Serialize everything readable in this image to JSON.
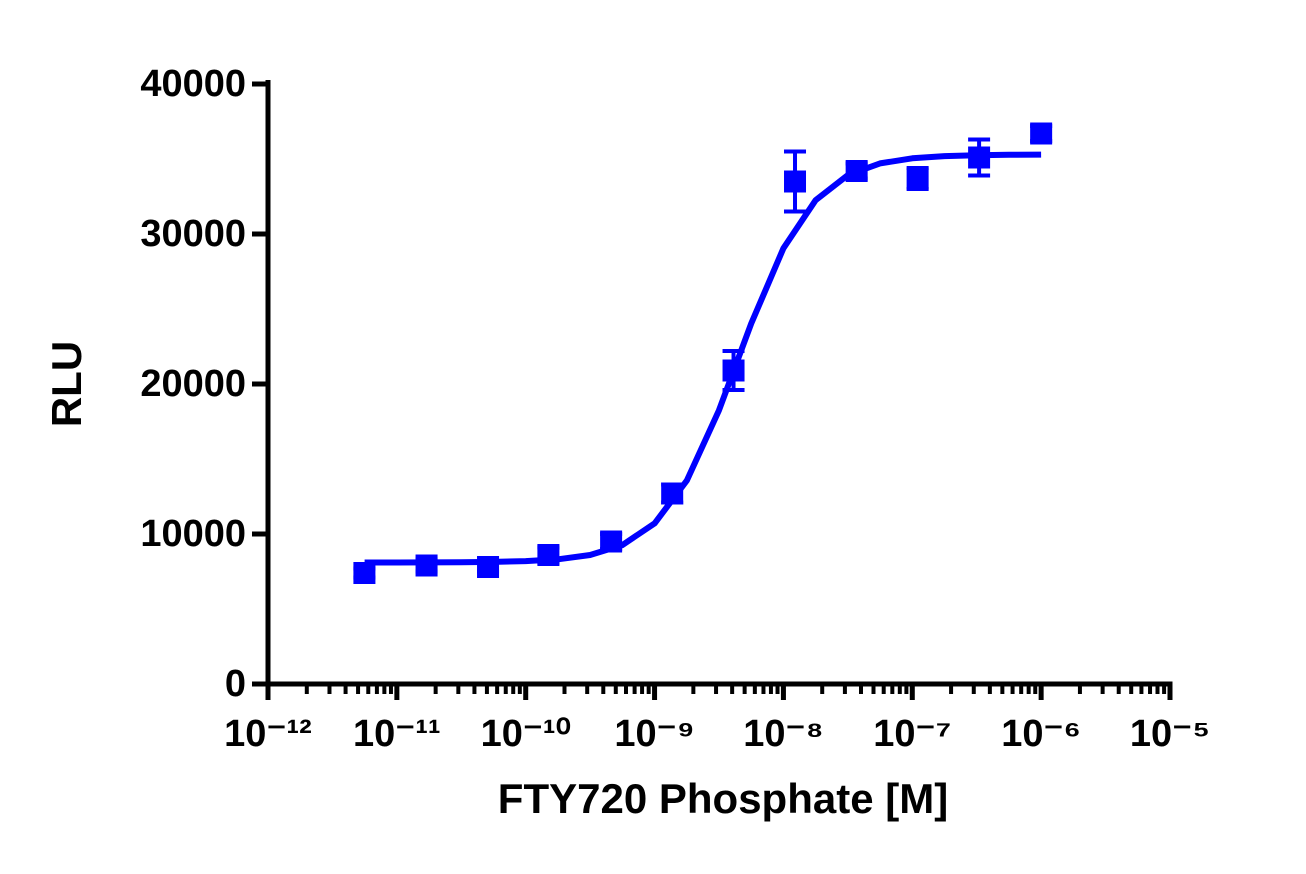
{
  "chart_data": {
    "type": "dose-response",
    "x_label": "FTY720 Phosphate [M]",
    "y_label": "RLU",
    "xscale": "log",
    "minor_ticks": true,
    "xlim": [
      1e-12,
      1e-05
    ],
    "xticks": [
      {
        "value": 1e-12,
        "label": "10⁻¹²"
      },
      {
        "value": 1e-11,
        "label": "10⁻¹¹"
      },
      {
        "value": 1e-10,
        "label": "10⁻¹⁰"
      },
      {
        "value": 1e-09,
        "label": "10⁻⁹"
      },
      {
        "value": 1e-08,
        "label": "10⁻⁸"
      },
      {
        "value": 1e-07,
        "label": "10⁻⁷"
      },
      {
        "value": 1e-06,
        "label": "10⁻⁶"
      },
      {
        "value": 1e-05,
        "label": "10⁻⁵"
      }
    ],
    "ylim": [
      0,
      40000
    ],
    "yticks": [
      0,
      10000,
      20000,
      30000,
      40000
    ],
    "color": "#0000ff",
    "x": [
      5.6e-12,
      1.7e-11,
      5.1e-11,
      1.5e-10,
      4.6e-10,
      1.37e-09,
      4.1e-09,
      1.23e-08,
      3.7e-08,
      1.1e-07,
      3.3e-07,
      1e-06
    ],
    "values": [
      7400,
      7900,
      7800,
      8600,
      9500,
      12700,
      20900,
      33500,
      34200,
      33700,
      35100,
      36700
    ],
    "errors": [
      300,
      400,
      300,
      500,
      500,
      600,
      1300,
      2000,
      500,
      700,
      1200,
      500
    ],
    "fit": {
      "x": [
        5.62e-12,
        1e-11,
        1.78e-11,
        3.16e-11,
        5.62e-11,
        1e-10,
        1.78e-10,
        3.16e-10,
        5.62e-10,
        1e-09,
        1.78e-09,
        3.16e-09,
        5.62e-09,
        1e-08,
        1.78e-08,
        3.16e-08,
        5.62e-08,
        1e-07,
        1.78e-07,
        3.16e-07,
        5.62e-07,
        1e-06
      ],
      "values": [
        8101,
        8103,
        8107,
        8116,
        8138,
        8191,
        8314,
        8603,
        9263,
        10705,
        13562,
        18253,
        24026,
        29047,
        32258,
        33929,
        34704,
        35046,
        35192,
        35254,
        35281,
        35292
      ]
    }
  }
}
